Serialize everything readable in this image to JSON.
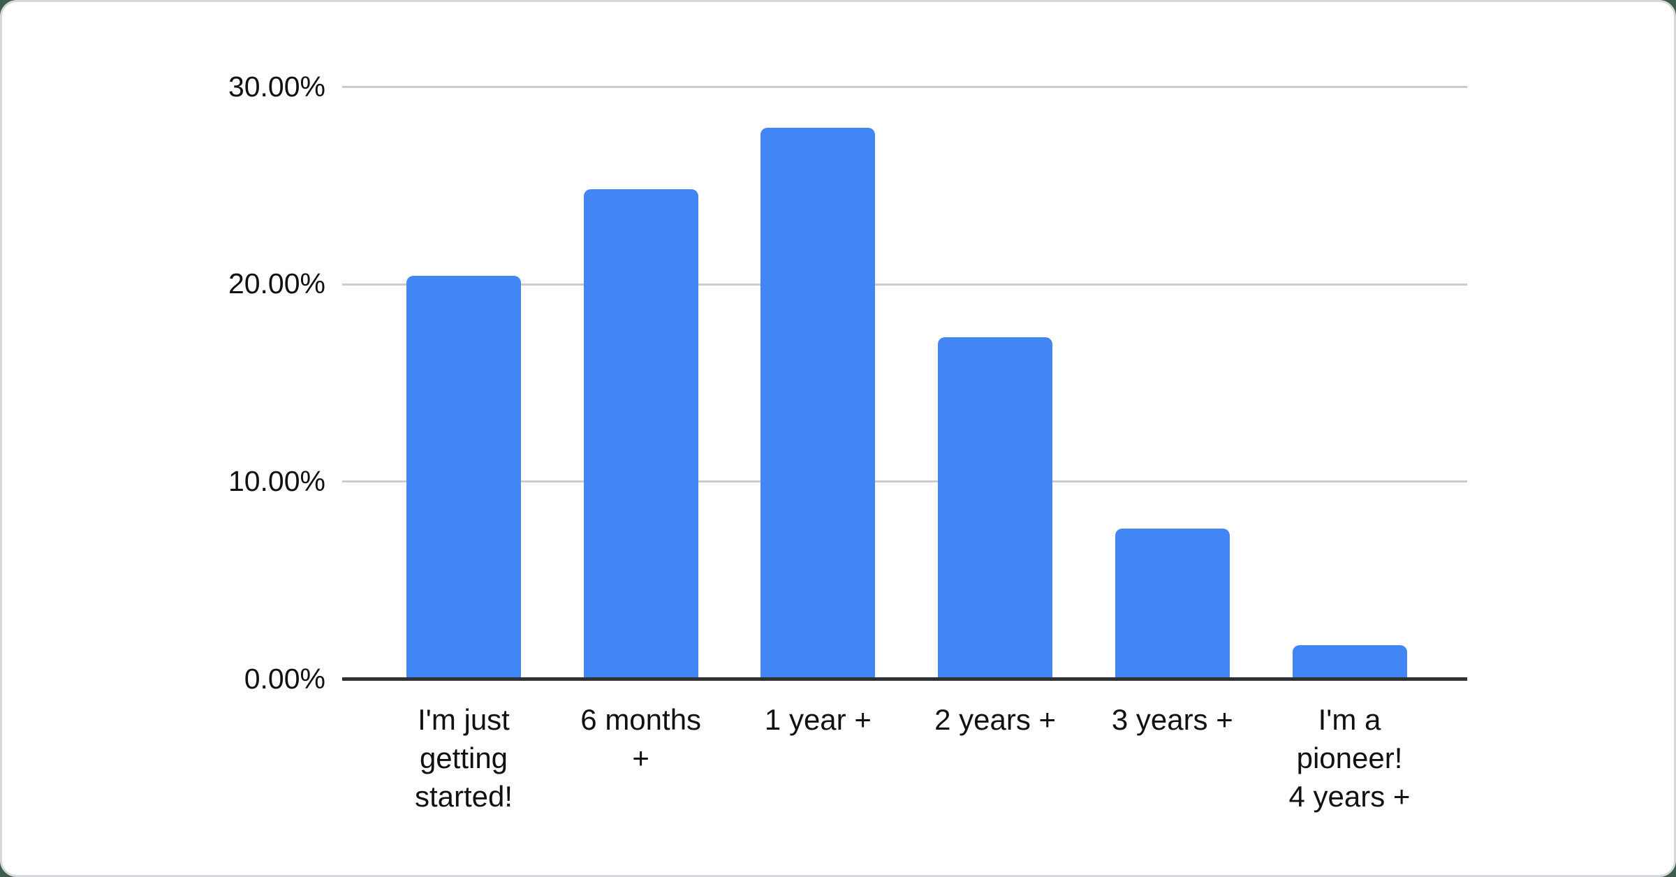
{
  "chart_data": {
    "type": "bar",
    "title": "",
    "xlabel": "",
    "ylabel": "",
    "categories": [
      "I'm just getting started!",
      "6 months +",
      "1 year +",
      "2 years +",
      "3 years +",
      "I'm a pioneer! 4 years +"
    ],
    "tick_labels_wrapped": [
      "I'm just\ngetting\nstarted!",
      "6 months\n+",
      "1 year +",
      "2 years +",
      "3 years +",
      "I'm a\npioneer!\n4 years +"
    ],
    "values": [
      20.4,
      24.8,
      27.9,
      17.3,
      7.6,
      1.7
    ],
    "value_unit": "%",
    "ylim": [
      0,
      30
    ],
    "ytick_values": [
      0,
      10,
      20,
      30
    ],
    "ytick_labels": [
      "0.00%",
      "10.00%",
      "20.00%",
      "30.00%"
    ],
    "grid": true,
    "legend": "none",
    "colors": {
      "bar": "#4285F4",
      "gridline": "#cccccc",
      "axis_line": "#2f3033",
      "text": "#111111",
      "card_background": "#ffffff",
      "card_border": "#d6dadd",
      "page_background": "#3f5b4a"
    }
  }
}
